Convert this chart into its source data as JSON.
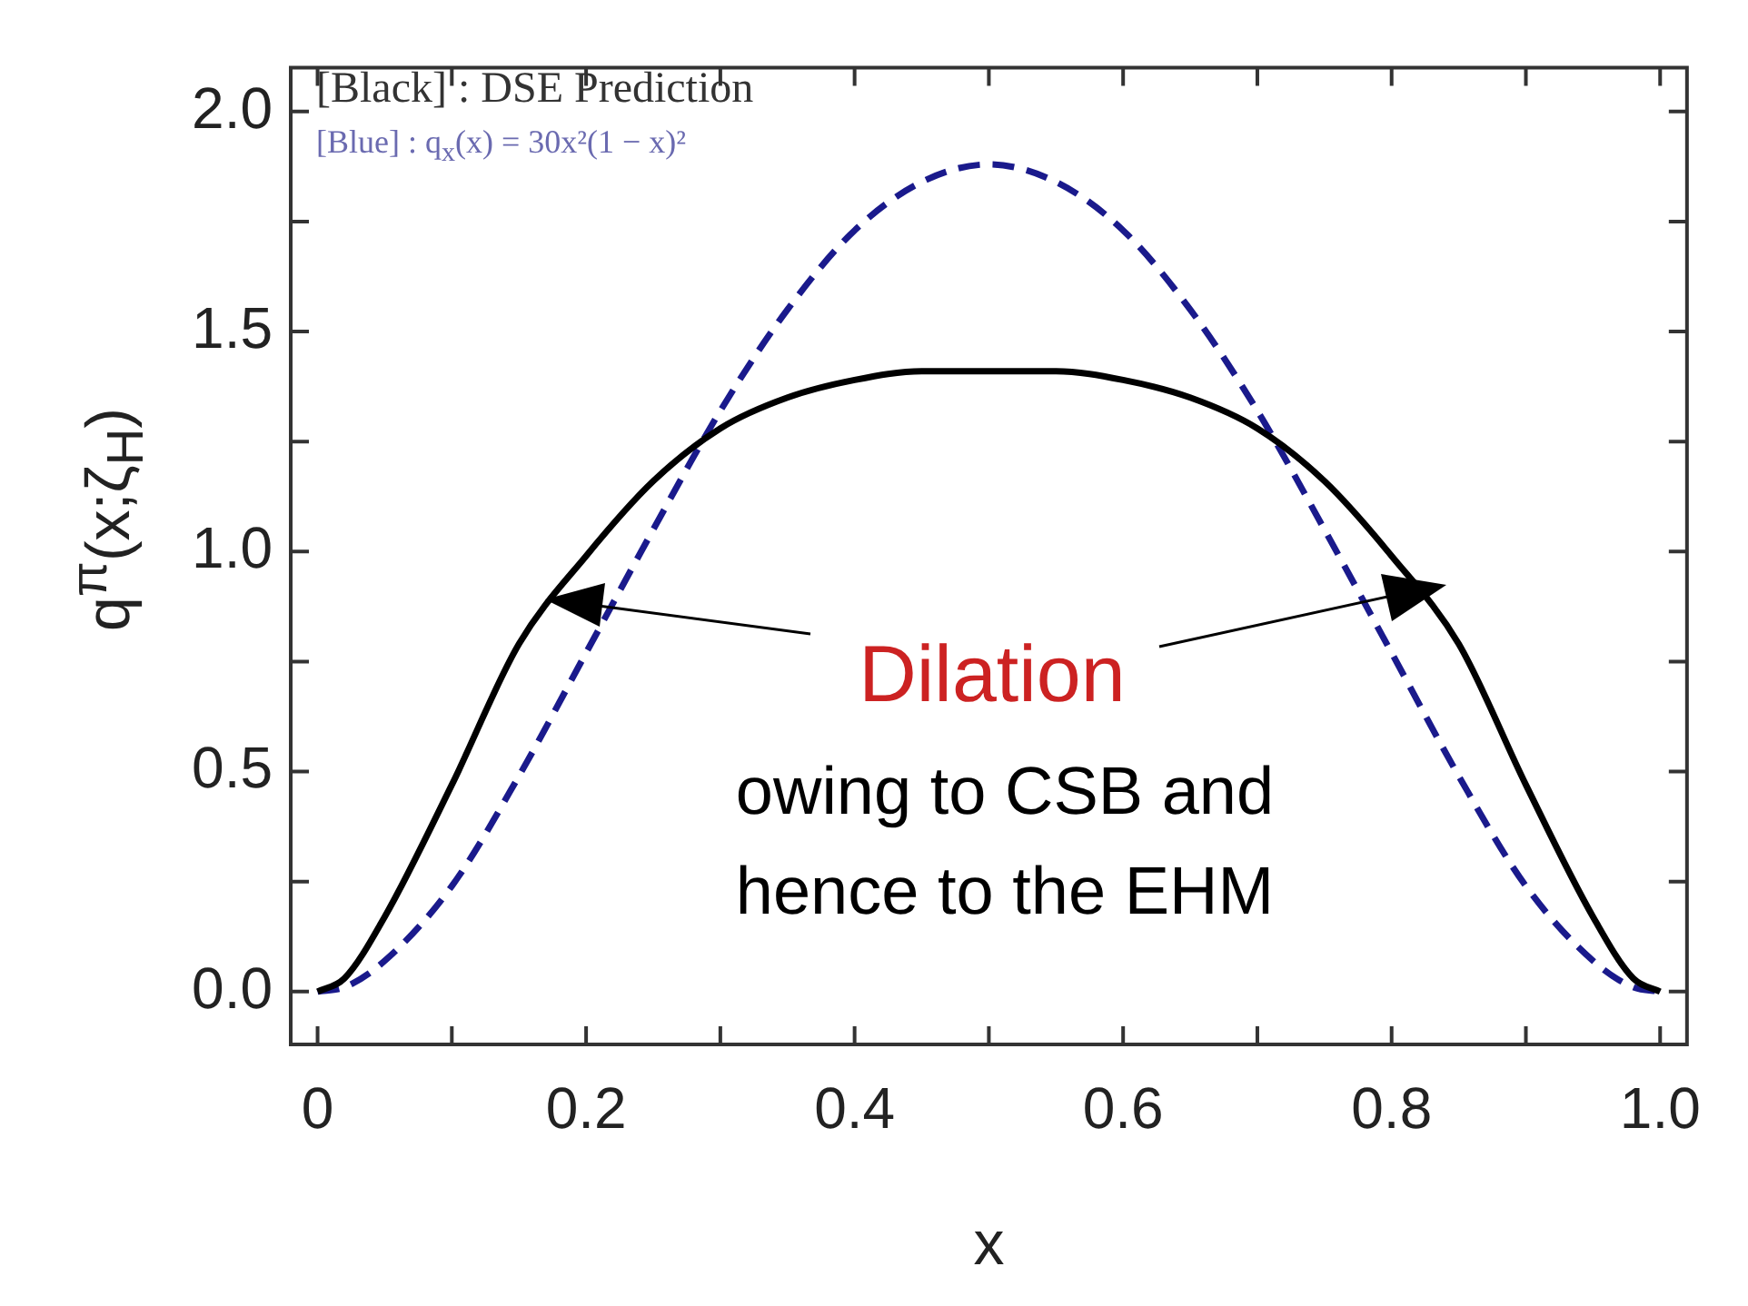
{
  "chart_data": {
    "type": "line",
    "xlabel": "x",
    "ylabel": "q$^{π}$(x;ζ$_{H}$)",
    "x": [
      0,
      0.02,
      0.05,
      0.1,
      0.15,
      0.2,
      0.25,
      0.3,
      0.35,
      0.4,
      0.45,
      0.5,
      0.55,
      0.6,
      0.65,
      0.7,
      0.75,
      0.8,
      0.85,
      0.9,
      0.95,
      0.98,
      1
    ],
    "series": [
      {
        "color": "#000000",
        "line_style": "solid",
        "values": [
          0,
          0.03,
          0.17,
          0.47,
          0.79,
          0.99,
          1.16,
          1.28,
          1.35,
          1.39,
          1.41,
          1.41,
          1.41,
          1.39,
          1.35,
          1.28,
          1.16,
          0.99,
          0.79,
          0.47,
          0.17,
          0.03,
          0
        ]
      },
      {
        "color": "#1a1a8c",
        "line_style": "dashed",
        "values": [
          0,
          0.01,
          0.07,
          0.24,
          0.49,
          0.77,
          1.05,
          1.32,
          1.55,
          1.73,
          1.84,
          1.88,
          1.84,
          1.73,
          1.55,
          1.32,
          1.05,
          0.77,
          0.49,
          0.24,
          0.07,
          0.01,
          0
        ]
      }
    ],
    "xlim": [
      -0.02,
      1.02
    ],
    "ylim": [
      -0.12,
      2.1
    ],
    "xticks": [
      0,
      {
        "value": 0.1,
        "label": null
      },
      {
        "value": 0.2,
        "label": "0.2"
      },
      {
        "value": 0.3,
        "label": null
      },
      {
        "value": 0.4,
        "label": "0.4"
      },
      {
        "value": 0.5,
        "label": null
      },
      {
        "value": 0.6,
        "label": "0.6"
      },
      {
        "value": 0.7,
        "label": null
      },
      {
        "value": 0.8,
        "label": "0.8"
      },
      {
        "value": 0.9,
        "label": null
      },
      {
        "value": 1,
        "label": "1.0"
      }
    ],
    "yticks": [
      {
        "value": 0,
        "label": "0.0"
      },
      {
        "value": 0.25,
        "label": null
      },
      {
        "value": 0.5,
        "label": "0.5"
      },
      {
        "value": 0.75,
        "label": null
      },
      {
        "value": 1,
        "label": "1.0"
      },
      {
        "value": 1.25,
        "label": null
      },
      {
        "value": 1.5,
        "label": "1.5"
      },
      {
        "value": 1.75,
        "label": null
      },
      {
        "value": 2,
        "label": "2.0"
      }
    ],
    "marker": "none",
    "legend": false,
    "annotations": [
      "[Black] : DSE Prediction",
      "[Blue] : q$_{x}$(x) = 30x²(1 − x)²",
      "Dilation",
      "owing to CSB and hence to the EHM"
    ]
  }
}
